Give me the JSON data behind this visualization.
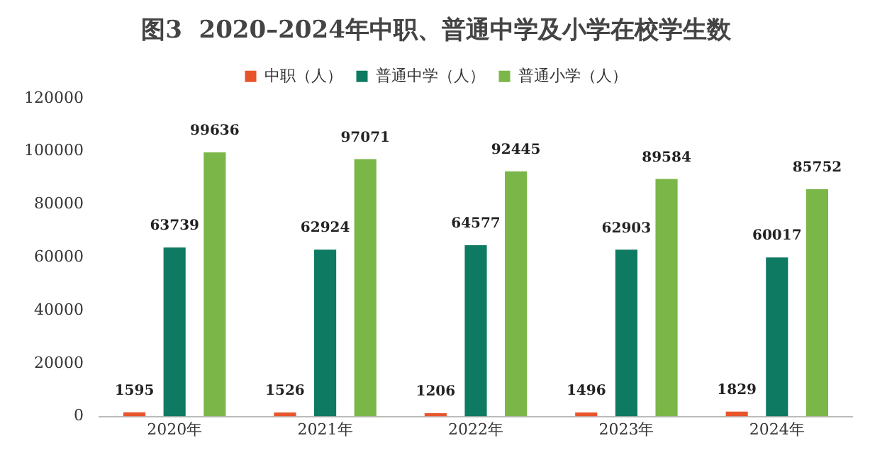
{
  "chart_data": {
    "type": "bar",
    "title": "图3  2020–2024年中职、普通中学及小学在校学生数",
    "categories": [
      "2020年",
      "2021年",
      "2022年",
      "2023年",
      "2024年"
    ],
    "series": [
      {
        "name": "中职（人）",
        "color": "#e8552a",
        "values": [
          1595,
          1526,
          1206,
          1496,
          1829
        ]
      },
      {
        "name": "普通中学（人）",
        "color": "#0f7a62",
        "values": [
          63739,
          62924,
          64577,
          62903,
          60017
        ]
      },
      {
        "name": "普通小学（人）",
        "color": "#7ab648",
        "values": [
          99636,
          97071,
          92445,
          89584,
          85752
        ]
      }
    ],
    "ylim": [
      0,
      120000
    ],
    "yticks": [
      0,
      20000,
      40000,
      60000,
      80000,
      100000,
      120000
    ],
    "grid": false,
    "legend": "top",
    "data_labels": true
  }
}
